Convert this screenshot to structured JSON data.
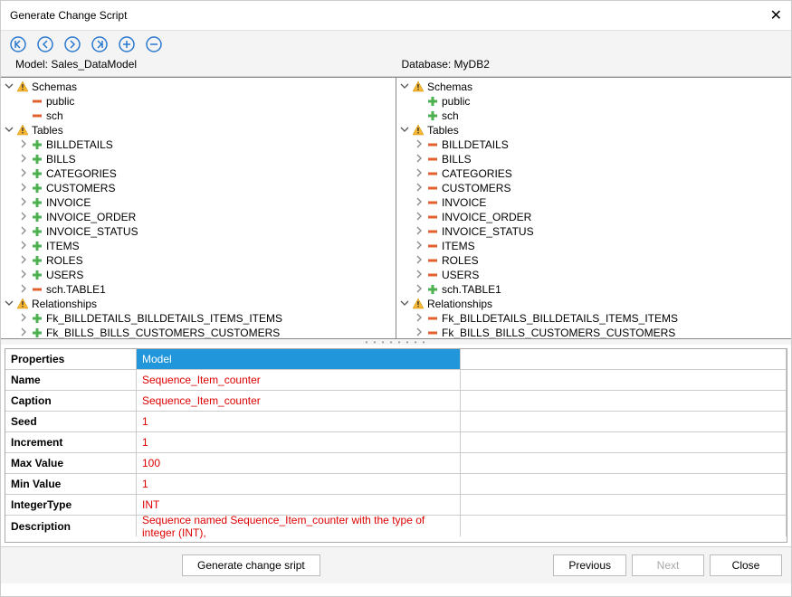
{
  "title": "Generate Change Script",
  "model_label": "Model: Sales_DataModel",
  "database_label": "Database: MyDB2",
  "toolbar": {
    "color": "#2a78d0",
    "buttons": [
      "first",
      "prev",
      "next",
      "last",
      "add",
      "remove"
    ]
  },
  "icons": {
    "warn": {
      "fill": "#f7b731",
      "stroke": "#c98a00"
    },
    "plus": {
      "h": "#4caf50",
      "v": "#4caf50"
    },
    "minus": {
      "fill": "#e06030"
    },
    "plus_minus_h": "#4caf50",
    "plus_minus_v": "#e06030"
  },
  "tree_left": [
    {
      "lv": 0,
      "exp": "v",
      "icon": "warn",
      "label": "Schemas"
    },
    {
      "lv": 1,
      "exp": "",
      "icon": "minus",
      "label": "public"
    },
    {
      "lv": 1,
      "exp": "",
      "icon": "minus",
      "label": "sch"
    },
    {
      "lv": 0,
      "exp": "v",
      "icon": "warn",
      "label": "Tables"
    },
    {
      "lv": 2,
      "exp": ">",
      "icon": "plus",
      "label": "BILLDETAILS"
    },
    {
      "lv": 2,
      "exp": ">",
      "icon": "plus",
      "label": "BILLS"
    },
    {
      "lv": 2,
      "exp": ">",
      "icon": "plus",
      "label": "CATEGORIES"
    },
    {
      "lv": 2,
      "exp": ">",
      "icon": "plus",
      "label": "CUSTOMERS"
    },
    {
      "lv": 2,
      "exp": ">",
      "icon": "plus",
      "label": "INVOICE"
    },
    {
      "lv": 2,
      "exp": ">",
      "icon": "plus",
      "label": "INVOICE_ORDER"
    },
    {
      "lv": 2,
      "exp": ">",
      "icon": "plus",
      "label": "INVOICE_STATUS"
    },
    {
      "lv": 2,
      "exp": ">",
      "icon": "plus",
      "label": "ITEMS"
    },
    {
      "lv": 2,
      "exp": ">",
      "icon": "plus",
      "label": "ROLES"
    },
    {
      "lv": 2,
      "exp": ">",
      "icon": "plus",
      "label": "USERS"
    },
    {
      "lv": 2,
      "exp": ">",
      "icon": "minus",
      "label": "sch.TABLE1"
    },
    {
      "lv": 0,
      "exp": "v",
      "icon": "warn",
      "label": "Relationships"
    },
    {
      "lv": 2,
      "exp": ">",
      "icon": "plus",
      "label": "Fk_BILLDETAILS_BILLDETAILS_ITEMS_ITEMS"
    },
    {
      "lv": 2,
      "exp": ">",
      "icon": "plus",
      "label": "Fk_BILLS_BILLS_CUSTOMERS_CUSTOMERS"
    }
  ],
  "tree_right": [
    {
      "lv": 0,
      "exp": "v",
      "icon": "warn",
      "label": "Schemas"
    },
    {
      "lv": 1,
      "exp": "",
      "icon": "plus",
      "label": "public"
    },
    {
      "lv": 1,
      "exp": "",
      "icon": "plus",
      "label": "sch"
    },
    {
      "lv": 0,
      "exp": "v",
      "icon": "warn",
      "label": "Tables"
    },
    {
      "lv": 2,
      "exp": ">",
      "icon": "minus",
      "label": "BILLDETAILS"
    },
    {
      "lv": 2,
      "exp": ">",
      "icon": "minus",
      "label": "BILLS"
    },
    {
      "lv": 2,
      "exp": ">",
      "icon": "minus",
      "label": "CATEGORIES"
    },
    {
      "lv": 2,
      "exp": ">",
      "icon": "minus",
      "label": "CUSTOMERS"
    },
    {
      "lv": 2,
      "exp": ">",
      "icon": "minus",
      "label": "INVOICE"
    },
    {
      "lv": 2,
      "exp": ">",
      "icon": "minus",
      "label": "INVOICE_ORDER"
    },
    {
      "lv": 2,
      "exp": ">",
      "icon": "minus",
      "label": "INVOICE_STATUS"
    },
    {
      "lv": 2,
      "exp": ">",
      "icon": "minus",
      "label": "ITEMS"
    },
    {
      "lv": 2,
      "exp": ">",
      "icon": "minus",
      "label": "ROLES"
    },
    {
      "lv": 2,
      "exp": ">",
      "icon": "minus",
      "label": "USERS"
    },
    {
      "lv": 2,
      "exp": ">",
      "icon": "plus",
      "label": "sch.TABLE1"
    },
    {
      "lv": 0,
      "exp": "v",
      "icon": "warn",
      "label": "Relationships"
    },
    {
      "lv": 2,
      "exp": ">",
      "icon": "minus",
      "label": "Fk_BILLDETAILS_BILLDETAILS_ITEMS_ITEMS"
    },
    {
      "lv": 2,
      "exp": ">",
      "icon": "minus",
      "label": "Fk_BILLS_BILLS_CUSTOMERS_CUSTOMERS"
    }
  ],
  "prop_header": {
    "col0": "Properties",
    "col1": "Model",
    "col2": ""
  },
  "props": [
    {
      "name": "Name",
      "model": "Sequence_Item_counter",
      "db": ""
    },
    {
      "name": "Caption",
      "model": "Sequence_Item_counter",
      "db": ""
    },
    {
      "name": "Seed",
      "model": "1",
      "db": ""
    },
    {
      "name": "Increment",
      "model": "1",
      "db": ""
    },
    {
      "name": "Max Value",
      "model": "100",
      "db": ""
    },
    {
      "name": "Min Value",
      "model": "1",
      "db": ""
    },
    {
      "name": "IntegerType",
      "model": "INT",
      "db": ""
    },
    {
      "name": "Description",
      "model": "Sequence named Sequence_Item_counter with the type of integer (INT),",
      "db": ""
    }
  ],
  "footer": {
    "generate": "Generate change sript",
    "previous": "Previous",
    "next": "Next",
    "close": "Close"
  }
}
